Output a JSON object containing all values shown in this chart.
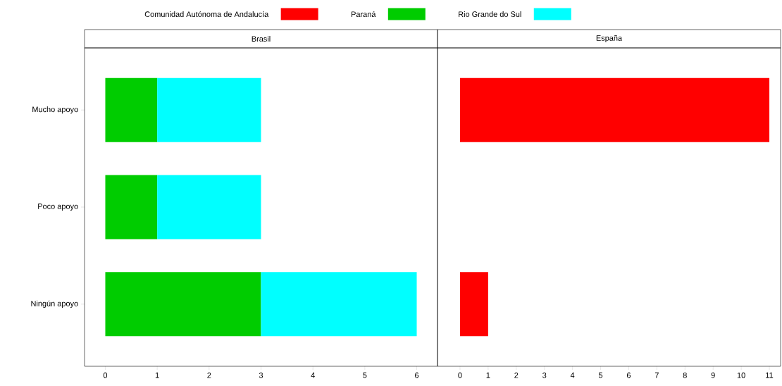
{
  "chart_data": [
    {
      "type": "bar",
      "title": "Brasil",
      "orientation": "horizontal",
      "stacked": true,
      "legend": "top",
      "categories": [
        "Mucho apoyo",
        "Poco apoyo",
        "Ningún apoyo"
      ],
      "series": [
        {
          "name": "Paraná",
          "color": "#00cc00",
          "values": [
            1,
            1,
            3
          ]
        },
        {
          "name": "Rio Grande do Sul",
          "color": "#00ffff",
          "values": [
            2,
            2,
            3
          ]
        }
      ],
      "xlim": [
        -0.4,
        6.4
      ],
      "xticks": [
        0,
        1,
        2,
        3,
        4,
        5,
        6
      ]
    },
    {
      "type": "bar",
      "title": "España",
      "orientation": "horizontal",
      "stacked": true,
      "legend": "top",
      "tick_labels": "x",
      "categories": [
        null,
        null,
        null
      ],
      "series": [
        {
          "name": "Comunidad Autónoma de Andalucía",
          "color": "#ff0000",
          "values": [
            11,
            null,
            1
          ]
        }
      ],
      "xlim": [
        -0.8,
        11.4
      ],
      "xticks": [
        0,
        1,
        2,
        3,
        4,
        5,
        6,
        7,
        8,
        9,
        10,
        11
      ]
    }
  ]
}
